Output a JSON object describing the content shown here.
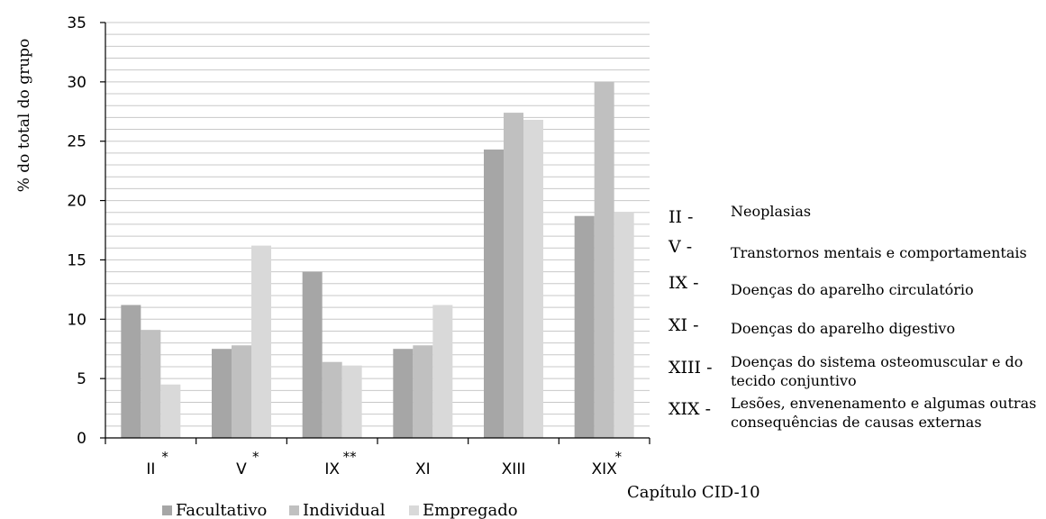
{
  "chart_data": {
    "type": "bar",
    "categories": [
      "II",
      "V",
      "IX",
      "XI",
      "XIII",
      "XIX"
    ],
    "category_marks": [
      "*",
      "*",
      "**",
      "",
      "",
      "*"
    ],
    "series": [
      {
        "name": "Facultativo",
        "color": "#a6a6a6",
        "values": [
          11.2,
          7.5,
          14.0,
          7.5,
          24.3,
          18.7
        ]
      },
      {
        "name": "Individual",
        "color": "#c0c0c0",
        "values": [
          9.1,
          7.8,
          6.4,
          7.8,
          27.4,
          30.0
        ]
      },
      {
        "name": "Empregado",
        "color": "#d9d9d9",
        "values": [
          4.5,
          16.2,
          6.1,
          11.2,
          26.8,
          19.0
        ]
      }
    ],
    "ylabel": "% do total do grupo",
    "xlabel": "Capítulo CID-10",
    "ylim": [
      0,
      35
    ],
    "yticks": [
      0,
      5,
      10,
      15,
      20,
      25,
      30,
      35
    ],
    "minor_grid_step": 1,
    "grid": true,
    "legend_position": "bottom"
  },
  "key": [
    {
      "code": "II -",
      "description": "Neoplasias"
    },
    {
      "code": "V -",
      "description": "Transtornos mentais e comportamentais"
    },
    {
      "code": "IX -",
      "description": "Doenças do aparelho circulatório"
    },
    {
      "code": "XI -",
      "description": "Doenças do aparelho digestivo"
    },
    {
      "code": "XIII -",
      "description": "Doenças do sistema osteomuscular e do tecido conjuntivo"
    },
    {
      "code": "XIX -",
      "description": "Lesões, envenenamento e algumas outras consequências de causas externas"
    }
  ]
}
